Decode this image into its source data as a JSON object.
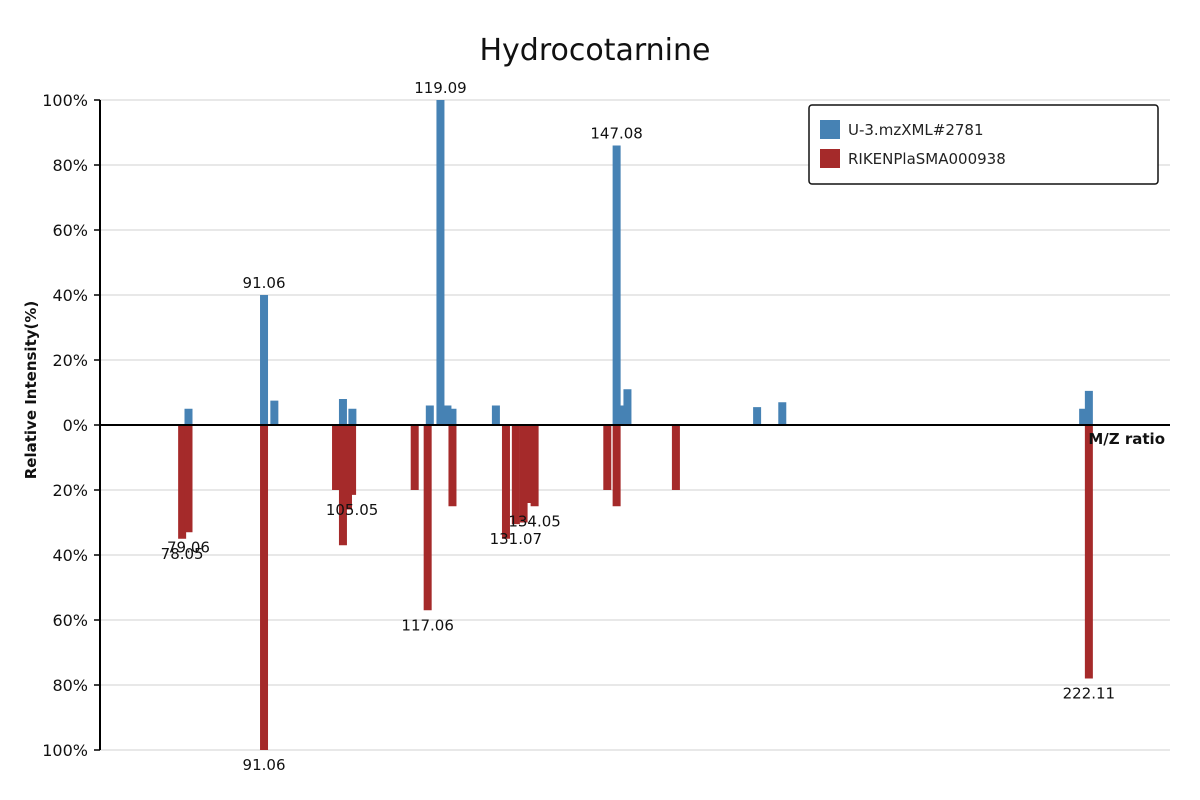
{
  "chart_data": {
    "type": "bar",
    "title": "Hydrocotarnine",
    "xlabel": "M/Z ratio",
    "ylabel": "Relative Intensity(%)",
    "xlim": [
      65,
      235
    ],
    "ylim": [
      -100,
      100
    ],
    "yticks": [
      100,
      80,
      60,
      40,
      20,
      0,
      -20,
      -40,
      -60,
      -80,
      -100
    ],
    "ytick_labels": [
      "100%",
      "80%",
      "60%",
      "40%",
      "20%",
      "0%",
      "20%",
      "40%",
      "60%",
      "80%",
      "100%"
    ],
    "grid": true,
    "legend_position": "top-right",
    "series": [
      {
        "name": "U-3.mzXML#2781",
        "color": "#4682b4",
        "direction": "up",
        "peaks": [
          {
            "mz": 79.06,
            "intensity": 5,
            "label": ""
          },
          {
            "mz": 91.06,
            "intensity": 40,
            "label": "91.06"
          },
          {
            "mz": 92.7,
            "intensity": 7.5,
            "label": ""
          },
          {
            "mz": 103.6,
            "intensity": 8,
            "label": ""
          },
          {
            "mz": 105.1,
            "intensity": 5,
            "label": ""
          },
          {
            "mz": 117.4,
            "intensity": 6,
            "label": ""
          },
          {
            "mz": 119.09,
            "intensity": 100,
            "label": "119.09"
          },
          {
            "mz": 120.2,
            "intensity": 6,
            "label": ""
          },
          {
            "mz": 121.0,
            "intensity": 5,
            "label": ""
          },
          {
            "mz": 127.9,
            "intensity": 6,
            "label": ""
          },
          {
            "mz": 147.08,
            "intensity": 86,
            "label": "147.08"
          },
          {
            "mz": 148.2,
            "intensity": 6,
            "label": ""
          },
          {
            "mz": 148.8,
            "intensity": 11,
            "label": ""
          },
          {
            "mz": 169.4,
            "intensity": 5.5,
            "label": ""
          },
          {
            "mz": 173.4,
            "intensity": 7,
            "label": ""
          },
          {
            "mz": 221.2,
            "intensity": 5,
            "label": ""
          },
          {
            "mz": 222.11,
            "intensity": 10.5,
            "label": ""
          }
        ]
      },
      {
        "name": "RIKENPlaSMA000938",
        "color": "#a52a2a",
        "direction": "down",
        "peaks": [
          {
            "mz": 78.05,
            "intensity": 35,
            "label": "78.05"
          },
          {
            "mz": 79.06,
            "intensity": 33,
            "label": "79.06"
          },
          {
            "mz": 91.06,
            "intensity": 100,
            "label": "91.06"
          },
          {
            "mz": 102.5,
            "intensity": 20,
            "label": ""
          },
          {
            "mz": 103.6,
            "intensity": 37,
            "label": ""
          },
          {
            "mz": 104.4,
            "intensity": 26,
            "label": ""
          },
          {
            "mz": 105.05,
            "intensity": 21.5,
            "label": "105.05"
          },
          {
            "mz": 115.0,
            "intensity": 20,
            "label": ""
          },
          {
            "mz": 117.06,
            "intensity": 57,
            "label": "117.06"
          },
          {
            "mz": 121.0,
            "intensity": 25,
            "label": ""
          },
          {
            "mz": 129.5,
            "intensity": 35,
            "label": ""
          },
          {
            "mz": 131.07,
            "intensity": 30.5,
            "label": "131.07"
          },
          {
            "mz": 132.3,
            "intensity": 30,
            "label": ""
          },
          {
            "mz": 133.3,
            "intensity": 24,
            "label": ""
          },
          {
            "mz": 134.05,
            "intensity": 25,
            "label": "134.05"
          },
          {
            "mz": 145.6,
            "intensity": 20,
            "label": ""
          },
          {
            "mz": 147.08,
            "intensity": 25,
            "label": ""
          },
          {
            "mz": 156.5,
            "intensity": 20,
            "label": ""
          },
          {
            "mz": 222.11,
            "intensity": 78,
            "label": "222.11"
          }
        ]
      }
    ]
  }
}
